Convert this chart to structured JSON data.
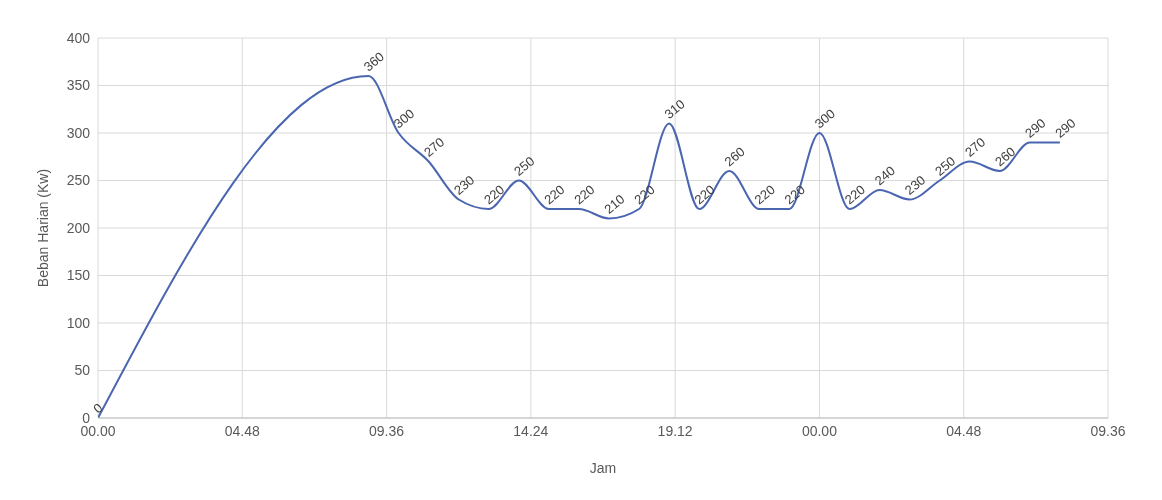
{
  "chart_data": {
    "type": "line",
    "xlabel": "Jam",
    "ylabel": "Beban Harian (Kw)",
    "x": [
      "2000-01-01T00:00",
      "2000-01-01T09:00",
      "2000-01-01T10:00",
      "2000-01-01T11:00",
      "2000-01-01T12:00",
      "2000-01-01T13:00",
      "2000-01-01T14:00",
      "2000-01-01T15:00",
      "2000-01-01T16:00",
      "2000-01-01T17:00",
      "2000-01-01T18:00",
      "2000-01-01T19:00",
      "2000-01-01T20:00",
      "2000-01-01T21:00",
      "2000-01-01T22:00",
      "2000-01-01T23:00",
      "2000-01-02T00:00",
      "2000-01-02T01:00",
      "2000-01-02T02:00",
      "2000-01-02T03:00",
      "2000-01-02T04:00",
      "2000-01-02T05:00",
      "2000-01-02T06:00",
      "2000-01-02T07:00",
      "2000-01-02T08:00"
    ],
    "series": [
      {
        "color": "#4a66b0",
        "values": [
          0,
          360,
          300,
          270,
          230,
          220,
          250,
          220,
          220,
          210,
          220,
          310,
          220,
          260,
          220,
          220,
          300,
          220,
          240,
          230,
          250,
          270,
          260,
          290,
          290
        ]
      }
    ],
    "xlim": [
      "2000-01-01T00:00",
      "2000-01-02T09:36"
    ],
    "xticks": [
      {
        "value": "2000-01-01T00:00",
        "label": "00.00"
      },
      {
        "value": "2000-01-01T04:48",
        "label": "04.48"
      },
      {
        "value": "2000-01-01T09:36",
        "label": "09.36"
      },
      {
        "value": "2000-01-01T14:24",
        "label": "14.24"
      },
      {
        "value": "2000-01-01T19:12",
        "label": "19.12"
      },
      {
        "value": "2000-01-02T00:00",
        "label": "00.00"
      },
      {
        "value": "2000-01-02T04:48",
        "label": "04.48"
      },
      {
        "value": "2000-01-02T09:36",
        "label": "09.36"
      }
    ],
    "ylim": [
      0,
      400
    ],
    "yticks": [
      0,
      50,
      100,
      150,
      200,
      250,
      300,
      350,
      400
    ],
    "grid": true,
    "data_labels": true,
    "marker": "none",
    "line_style": "solid",
    "legend": false
  }
}
